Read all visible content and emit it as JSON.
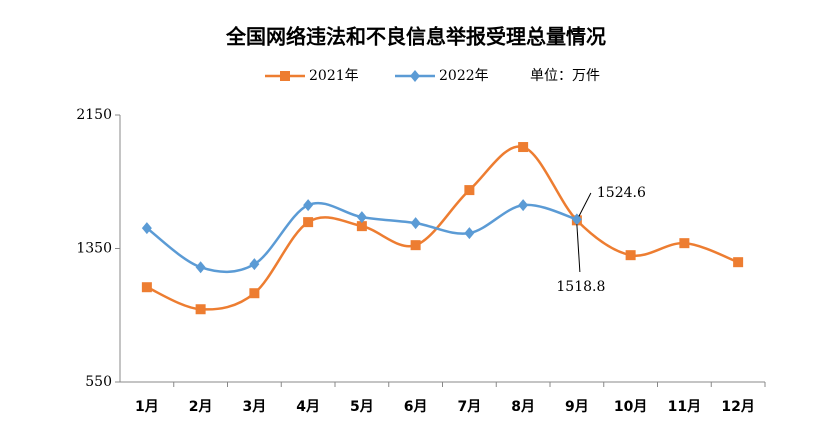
{
  "chart_data": {
    "type": "line",
    "title": "全国网络违法和不良信息举报受理总量情况",
    "unit_label": "单位：万件",
    "categories": [
      "1月",
      "2月",
      "3月",
      "4月",
      "5月",
      "6月",
      "7月",
      "8月",
      "9月",
      "10月",
      "11月",
      "12月"
    ],
    "series": [
      {
        "name": "2021年",
        "color": "#ed7d31",
        "marker": "square",
        "values": [
          1118,
          986,
          1082,
          1508,
          1484,
          1370,
          1700,
          1958,
          1518.8,
          1310,
          1382,
          1268
        ]
      },
      {
        "name": "2022年",
        "color": "#5b9bd5",
        "marker": "diamond",
        "values": [
          1472,
          1238,
          1256,
          1610,
          1538,
          1502,
          1442,
          1610,
          1524.6,
          null,
          null,
          null
        ]
      }
    ],
    "ylim": [
      550,
      2150
    ],
    "yticks": [
      550,
      1350,
      2150
    ],
    "grid": false
  }
}
